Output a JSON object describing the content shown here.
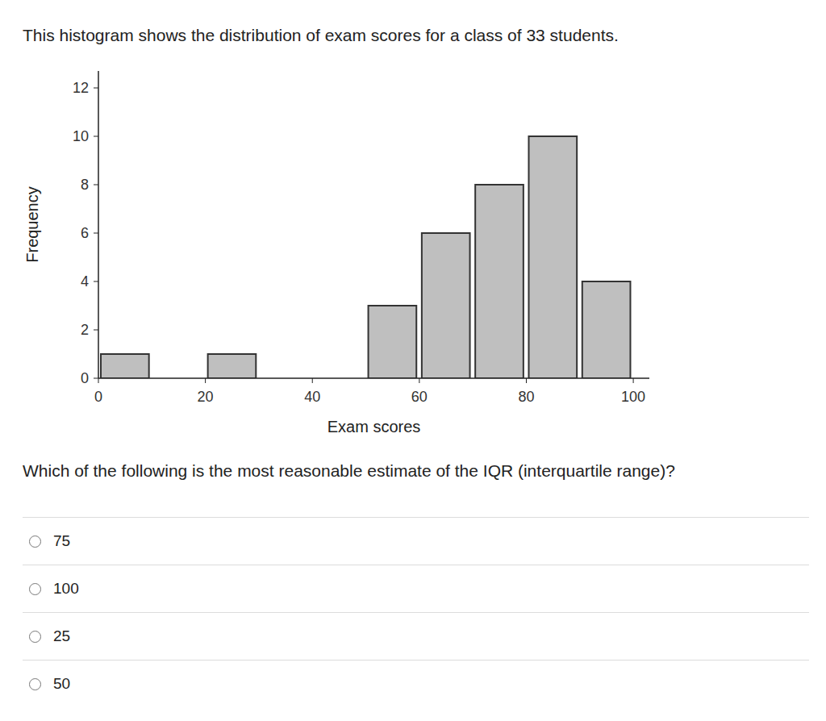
{
  "header": {
    "title": "This histogram shows the distribution of exam scores for a class of 33 students."
  },
  "chart_data": {
    "type": "histogram",
    "x_label": "Exam scores",
    "y_label": "Frequency",
    "bins": [
      0,
      10,
      20,
      30,
      40,
      50,
      60,
      70,
      80,
      90,
      100
    ],
    "counts": [
      1,
      0,
      1,
      0,
      0,
      3,
      6,
      8,
      10,
      4
    ],
    "color": "#bfbfbf",
    "xlim": [
      0,
      103
    ],
    "xticks": [
      0,
      20,
      40,
      60,
      80,
      100
    ],
    "ylim": [
      0,
      12.7
    ],
    "yticks": [
      0,
      2,
      4,
      6,
      8,
      10,
      12
    ],
    "grid": false
  },
  "question": "Which of the following is the most reasonable estimate of the IQR (interquartile range)?",
  "options": [
    75,
    100,
    25,
    50
  ]
}
